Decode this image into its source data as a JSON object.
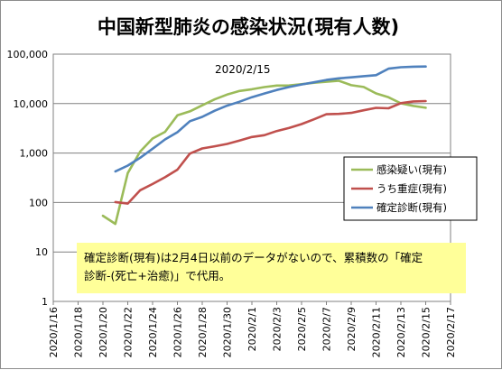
{
  "chart_data": {
    "type": "line",
    "title": "中国新型肺炎の感染状況(現有人数)",
    "xlabel": "",
    "ylabel": "",
    "y_scale": "log",
    "ylim": [
      1,
      100000
    ],
    "y_ticks": [
      "1",
      "10",
      "100",
      "1,000",
      "10,000",
      "100,000"
    ],
    "xlim": [
      "2020-01-16",
      "2020-02-17"
    ],
    "x_ticks": [
      "2020/1/16",
      "2020/1/18",
      "2020/1/20",
      "2020/1/22",
      "2020/1/24",
      "2020/1/26",
      "2020/1/28",
      "2020/1/30",
      "2020/2/1",
      "2020/2/3",
      "2020/2/5",
      "2020/2/7",
      "2020/2/9",
      "2020/2/11",
      "2020/2/13",
      "2020/2/15",
      "2020/2/17"
    ],
    "grid": "horizontal",
    "legend_position": "right",
    "annotation": "2020/2/15",
    "note": "確定診断(現有)は2月4日以前のデータがないので、累積数の「確定診断-(死亡+治癒)」で代用。",
    "series": [
      {
        "name": "感染疑い(現有)",
        "color": "#9bbb59",
        "x": [
          "2020-01-20",
          "2020-01-21",
          "2020-01-22",
          "2020-01-23",
          "2020-01-24",
          "2020-01-25",
          "2020-01-26",
          "2020-01-27",
          "2020-01-28",
          "2020-01-29",
          "2020-01-30",
          "2020-01-31",
          "2020-02-01",
          "2020-02-02",
          "2020-02-03",
          "2020-02-04",
          "2020-02-05",
          "2020-02-06",
          "2020-02-07",
          "2020-02-08",
          "2020-02-09",
          "2020-02-10",
          "2020-02-11",
          "2020-02-12",
          "2020-02-13",
          "2020-02-14",
          "2020-02-15"
        ],
        "values": [
          54,
          37,
          393,
          1072,
          1965,
          2684,
          5794,
          6973,
          9239,
          12167,
          15238,
          17988,
          19544,
          21558,
          23214,
          23260,
          24702,
          26359,
          27657,
          28942,
          23589,
          21675,
          16067,
          13435,
          10109,
          8969,
          8228
        ]
      },
      {
        "name": "うち重症(現有)",
        "color": "#c0504d",
        "x": [
          "2020-01-21",
          "2020-01-22",
          "2020-01-23",
          "2020-01-24",
          "2020-01-25",
          "2020-01-26",
          "2020-01-27",
          "2020-01-28",
          "2020-01-29",
          "2020-01-30",
          "2020-01-31",
          "2020-02-01",
          "2020-02-02",
          "2020-02-03",
          "2020-02-04",
          "2020-02-05",
          "2020-02-06",
          "2020-02-07",
          "2020-02-08",
          "2020-02-09",
          "2020-02-10",
          "2020-02-11",
          "2020-02-12",
          "2020-02-13",
          "2020-02-14",
          "2020-02-15"
        ],
        "values": [
          102,
          95,
          177,
          237,
          324,
          461,
          976,
          1239,
          1370,
          1527,
          1795,
          2110,
          2296,
          2788,
          3219,
          3859,
          4821,
          6101,
          6188,
          6484,
          7333,
          8204,
          8030,
          10204,
          11053,
          11272
        ]
      },
      {
        "name": "確定診断(現有)",
        "color": "#4f81bd",
        "x": [
          "2020-01-21",
          "2020-01-22",
          "2020-01-23",
          "2020-01-24",
          "2020-01-25",
          "2020-01-26",
          "2020-01-27",
          "2020-01-28",
          "2020-01-29",
          "2020-01-30",
          "2020-01-31",
          "2020-02-01",
          "2020-02-02",
          "2020-02-03",
          "2020-02-04",
          "2020-02-05",
          "2020-02-06",
          "2020-02-07",
          "2020-02-08",
          "2020-02-09",
          "2020-02-10",
          "2020-02-11",
          "2020-02-12",
          "2020-02-13",
          "2020-02-14",
          "2020-02-15"
        ],
        "values": [
          426,
          557,
          805,
          1226,
          1889,
          2644,
          4408,
          5381,
          7170,
          9078,
          10932,
          13457,
          16032,
          18875,
          21659,
          24321,
          27009,
          30006,
          32404,
          33957,
          35942,
          37616,
          50738,
          54452,
          55670,
          56289
        ]
      }
    ]
  }
}
